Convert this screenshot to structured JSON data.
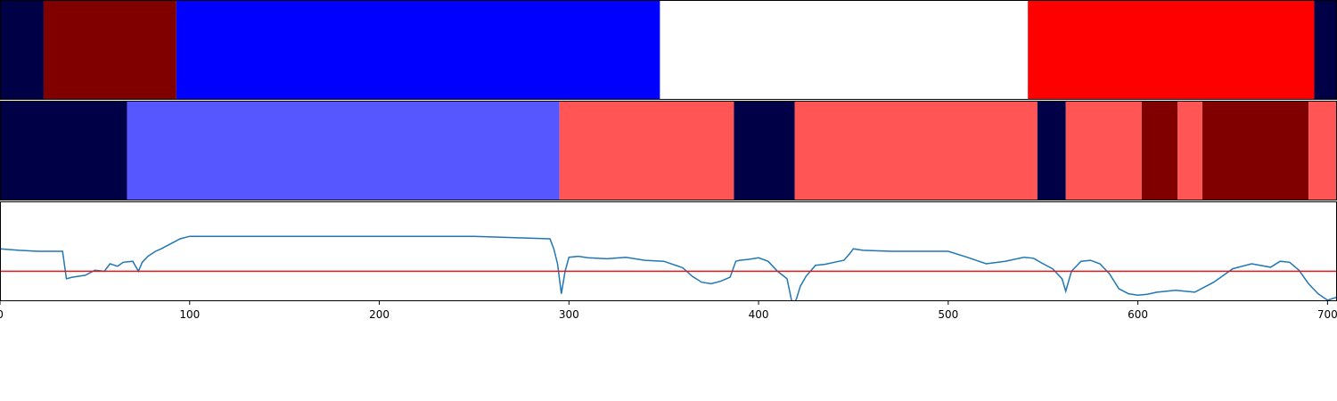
{
  "chart_data": [
    {
      "type": "heatmap",
      "panel": "segments-top",
      "x_range": [
        0,
        705
      ],
      "segments": [
        {
          "start": 0,
          "end": 23,
          "color": "#000046"
        },
        {
          "start": 23,
          "end": 93,
          "color": "#800000"
        },
        {
          "start": 93,
          "end": 348,
          "color": "#0000ff"
        },
        {
          "start": 348,
          "end": 542,
          "color": "#ffffff"
        },
        {
          "start": 542,
          "end": 693,
          "color": "#ff0000"
        },
        {
          "start": 693,
          "end": 705,
          "color": "#000046"
        }
      ]
    },
    {
      "type": "heatmap",
      "panel": "segments-middle",
      "x_range": [
        0,
        705
      ],
      "segments": [
        {
          "start": 0,
          "end": 67,
          "color": "#000046"
        },
        {
          "start": 67,
          "end": 295,
          "color": "#5757ff"
        },
        {
          "start": 295,
          "end": 387,
          "color": "#ff5555"
        },
        {
          "start": 387,
          "end": 419,
          "color": "#000046"
        },
        {
          "start": 419,
          "end": 547,
          "color": "#ff5555"
        },
        {
          "start": 547,
          "end": 562,
          "color": "#000046"
        },
        {
          "start": 562,
          "end": 602,
          "color": "#ff5555"
        },
        {
          "start": 602,
          "end": 621,
          "color": "#800000"
        },
        {
          "start": 621,
          "end": 634,
          "color": "#ff5555"
        },
        {
          "start": 634,
          "end": 690,
          "color": "#800000"
        },
        {
          "start": 690,
          "end": 705,
          "color": "#ff5555"
        }
      ]
    },
    {
      "type": "line",
      "panel": "signal",
      "xlim": [
        0,
        705
      ],
      "ylim": [
        -1.0,
        1.0
      ],
      "grid": false,
      "line_color": "#1f77b4",
      "threshold": {
        "value": -0.4,
        "color": "#e31a1c"
      },
      "xticks": [
        0,
        100,
        200,
        300,
        400,
        500,
        600,
        700
      ],
      "x": [
        0,
        10,
        20,
        30,
        33,
        35,
        38,
        45,
        50,
        55,
        58,
        62,
        65,
        70,
        73,
        75,
        78,
        82,
        85,
        90,
        95,
        100,
        150,
        200,
        250,
        290,
        292,
        294,
        296,
        298,
        300,
        305,
        310,
        320,
        330,
        340,
        350,
        360,
        365,
        370,
        375,
        380,
        385,
        388,
        390,
        395,
        400,
        405,
        410,
        415,
        418,
        420,
        422,
        425,
        430,
        435,
        440,
        445,
        448,
        450,
        455,
        470,
        500,
        510,
        520,
        530,
        540,
        545,
        550,
        555,
        560,
        562,
        565,
        570,
        575,
        580,
        585,
        590,
        595,
        600,
        605,
        610,
        620,
        630,
        640,
        650,
        660,
        670,
        675,
        680,
        685,
        690,
        695,
        700,
        705
      ],
      "y": [
        0.05,
        0.02,
        0.0,
        0.0,
        0.0,
        -0.55,
        -0.52,
        -0.48,
        -0.38,
        -0.4,
        -0.25,
        -0.3,
        -0.22,
        -0.2,
        -0.4,
        -0.22,
        -0.1,
        0.0,
        0.05,
        0.15,
        0.25,
        0.3,
        0.3,
        0.3,
        0.3,
        0.25,
        0.05,
        -0.25,
        -0.85,
        -0.4,
        -0.12,
        -0.1,
        -0.13,
        -0.15,
        -0.12,
        -0.18,
        -0.2,
        -0.33,
        -0.5,
        -0.62,
        -0.65,
        -0.6,
        -0.52,
        -0.2,
        -0.18,
        -0.16,
        -0.13,
        -0.2,
        -0.4,
        -0.55,
        -1.1,
        -0.95,
        -0.7,
        -0.5,
        -0.28,
        -0.26,
        -0.22,
        -0.18,
        -0.05,
        0.05,
        0.02,
        0.0,
        0.0,
        -0.12,
        -0.25,
        -0.2,
        -0.12,
        -0.14,
        -0.25,
        -0.35,
        -0.55,
        -0.8,
        -0.4,
        -0.2,
        -0.18,
        -0.25,
        -0.45,
        -0.75,
        -0.85,
        -0.88,
        -0.86,
        -0.82,
        -0.78,
        -0.82,
        -0.62,
        -0.35,
        -0.25,
        -0.32,
        -0.2,
        -0.22,
        -0.38,
        -0.65,
        -0.85,
        -0.98,
        -0.92
      ]
    }
  ]
}
